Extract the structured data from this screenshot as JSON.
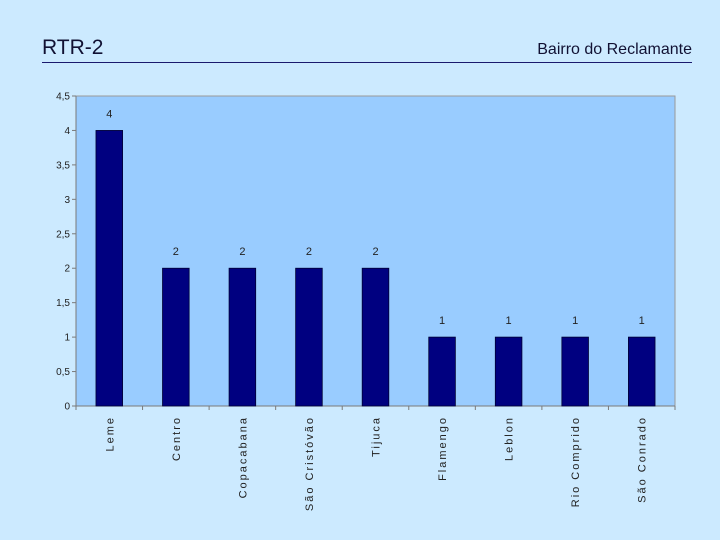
{
  "header": {
    "code": "RTR-2",
    "subtitle": "Bairro do Reclamante"
  },
  "chart_data": {
    "type": "bar",
    "title": "",
    "xlabel": "",
    "ylabel": "",
    "categories": [
      "Leme",
      "Centro",
      "Copacabana",
      "São Cristóvão",
      "Tijuca",
      "Flamengo",
      "Leblon",
      "Rio Comprido",
      "São Conrado"
    ],
    "values": [
      4,
      2,
      2,
      2,
      2,
      1,
      1,
      1,
      1
    ],
    "data_labels": [
      "4",
      "2",
      "2",
      "2",
      "2",
      "1",
      "1",
      "1",
      "1"
    ],
    "ylim": [
      0,
      4.5
    ],
    "yticks": [
      0,
      0.5,
      1,
      1.5,
      2,
      2.5,
      3,
      3.5,
      4,
      4.5
    ],
    "ytick_labels": [
      "0",
      "0,5",
      "1",
      "1,5",
      "2",
      "2,5",
      "3",
      "3,5",
      "4",
      "4,5"
    ],
    "grid": false,
    "legend": "none",
    "colors": {
      "plot_background": "#99ccff",
      "bar": "#000080",
      "axis": "#7a7a7a"
    }
  }
}
